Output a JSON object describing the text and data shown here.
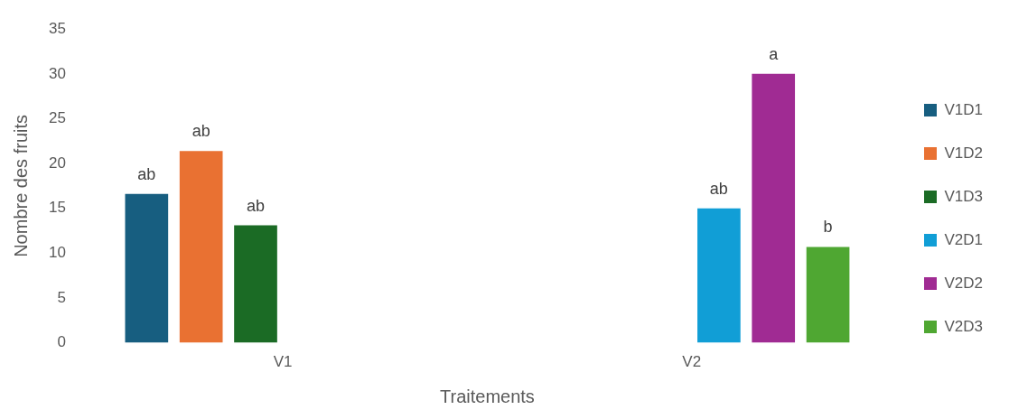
{
  "chart_data": {
    "type": "bar",
    "xlabel": "Traitements",
    "ylabel": "Nombre des fruits",
    "categories": [
      "V1",
      "V2"
    ],
    "series": [
      {
        "name": "V1D1",
        "color": "#175e80",
        "values": [
          16.6,
          null
        ],
        "value_labels": [
          "ab",
          null
        ]
      },
      {
        "name": "V1D2",
        "color": "#e97132",
        "values": [
          21.4,
          null
        ],
        "value_labels": [
          "ab",
          null
        ]
      },
      {
        "name": "V1D3",
        "color": "#1b6b25",
        "values": [
          13.1,
          null
        ],
        "value_labels": [
          "ab",
          null
        ]
      },
      {
        "name": "V2D1",
        "color": "#119ed6",
        "values": [
          null,
          15.0
        ],
        "value_labels": [
          null,
          "ab"
        ]
      },
      {
        "name": "V2D2",
        "color": "#a02b93",
        "values": [
          null,
          30.0
        ],
        "value_labels": [
          null,
          "a"
        ]
      },
      {
        "name": "V2D3",
        "color": "#4fa732",
        "values": [
          null,
          10.7
        ],
        "value_labels": [
          null,
          "b"
        ]
      }
    ],
    "ylim": [
      0,
      35
    ],
    "yticks": [
      0,
      5,
      10,
      15,
      20,
      25,
      30,
      35
    ],
    "grid": false,
    "legend": "right"
  }
}
